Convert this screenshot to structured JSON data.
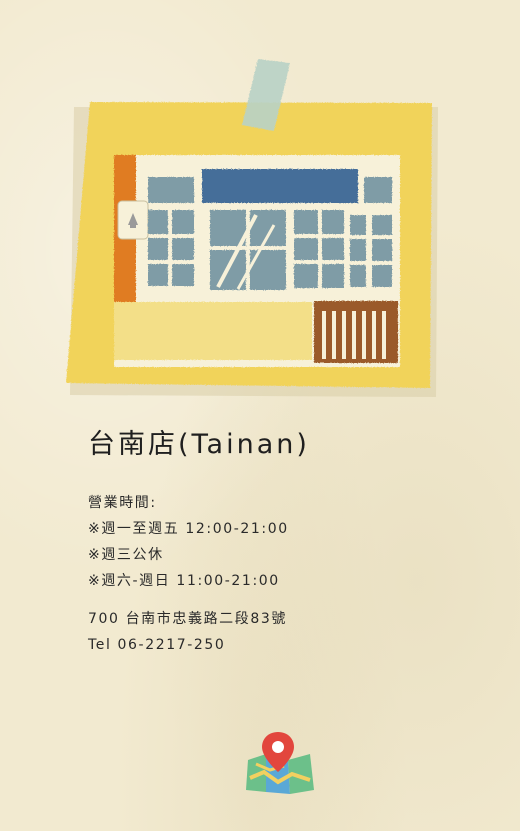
{
  "store": {
    "name": "台南店(Tainan)",
    "hours_label": "營業時間:",
    "hours": [
      "※週一至週五 12:00-21:00",
      "※週三公休",
      "※週六-週日 11:00-21:00"
    ],
    "address": "700 台南市忠義路二段83號",
    "phone": "Tel 06-2217-250"
  },
  "icons": {
    "map": "map-location-icon"
  },
  "colors": {
    "background": "#f2ead0",
    "note_yellow": "#f1d35a",
    "building_cream": "#f7f1d9",
    "window_blue": "#7f9ca6",
    "sign_blue": "#456e99",
    "accent_orange": "#e07b24",
    "gate_brown": "#9a5a2c"
  }
}
